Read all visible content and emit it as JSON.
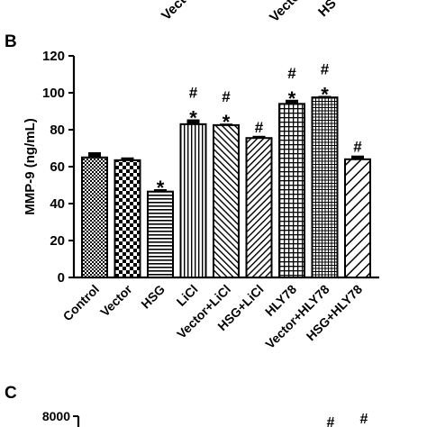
{
  "top_fragments": [
    "Vector",
    "Vector",
    "HS"
  ],
  "panels": {
    "b": {
      "letter": "B"
    },
    "c": {
      "letter": "C",
      "y_top_tick": "8000",
      "marks": [
        "#",
        "#"
      ]
    }
  },
  "chart_data": {
    "type": "bar",
    "title": "",
    "xlabel": "",
    "ylabel": "MMP-9 (ng/mL)",
    "ylim": [
      0,
      120
    ],
    "yticks": [
      "0",
      "20",
      "40",
      "60",
      "80",
      "100",
      "120"
    ],
    "categories": [
      "Control",
      "Vector",
      "HSG",
      "LiCl",
      "Vector+LiCl",
      "HSG+LiCl",
      "HLY78",
      "Vector+HLY78",
      "HSG+HLY78"
    ],
    "values": [
      65,
      63.5,
      46.5,
      83,
      82.5,
      75.5,
      94,
      97.5,
      64
    ],
    "errors": [
      2.8,
      1.5,
      1.3,
      2.6,
      0.8,
      1.2,
      2.2,
      0.8,
      2
    ],
    "fill_patterns": [
      "checker-fine",
      "checker-coarse",
      "horizontal",
      "vertical",
      "diagonal-forward",
      "diagonal-back",
      "grid",
      "grid-fine",
      "diagonal-back-wide"
    ],
    "annotations": [
      {
        "category": "HSG",
        "text": "*"
      },
      {
        "category": "LiCl",
        "text": "*"
      },
      {
        "category": "LiCl",
        "text": "#"
      },
      {
        "category": "Vector+LiCl",
        "text": "*"
      },
      {
        "category": "Vector+LiCl",
        "text": "#"
      },
      {
        "category": "HSG+LiCl",
        "text": "#"
      },
      {
        "category": "HLY78",
        "text": "*"
      },
      {
        "category": "HLY78",
        "text": "#"
      },
      {
        "category": "Vector+HLY78",
        "text": "*"
      },
      {
        "category": "Vector+HLY78",
        "text": "#"
      },
      {
        "category": "HSG+HLY78",
        "text": "#"
      }
    ]
  }
}
